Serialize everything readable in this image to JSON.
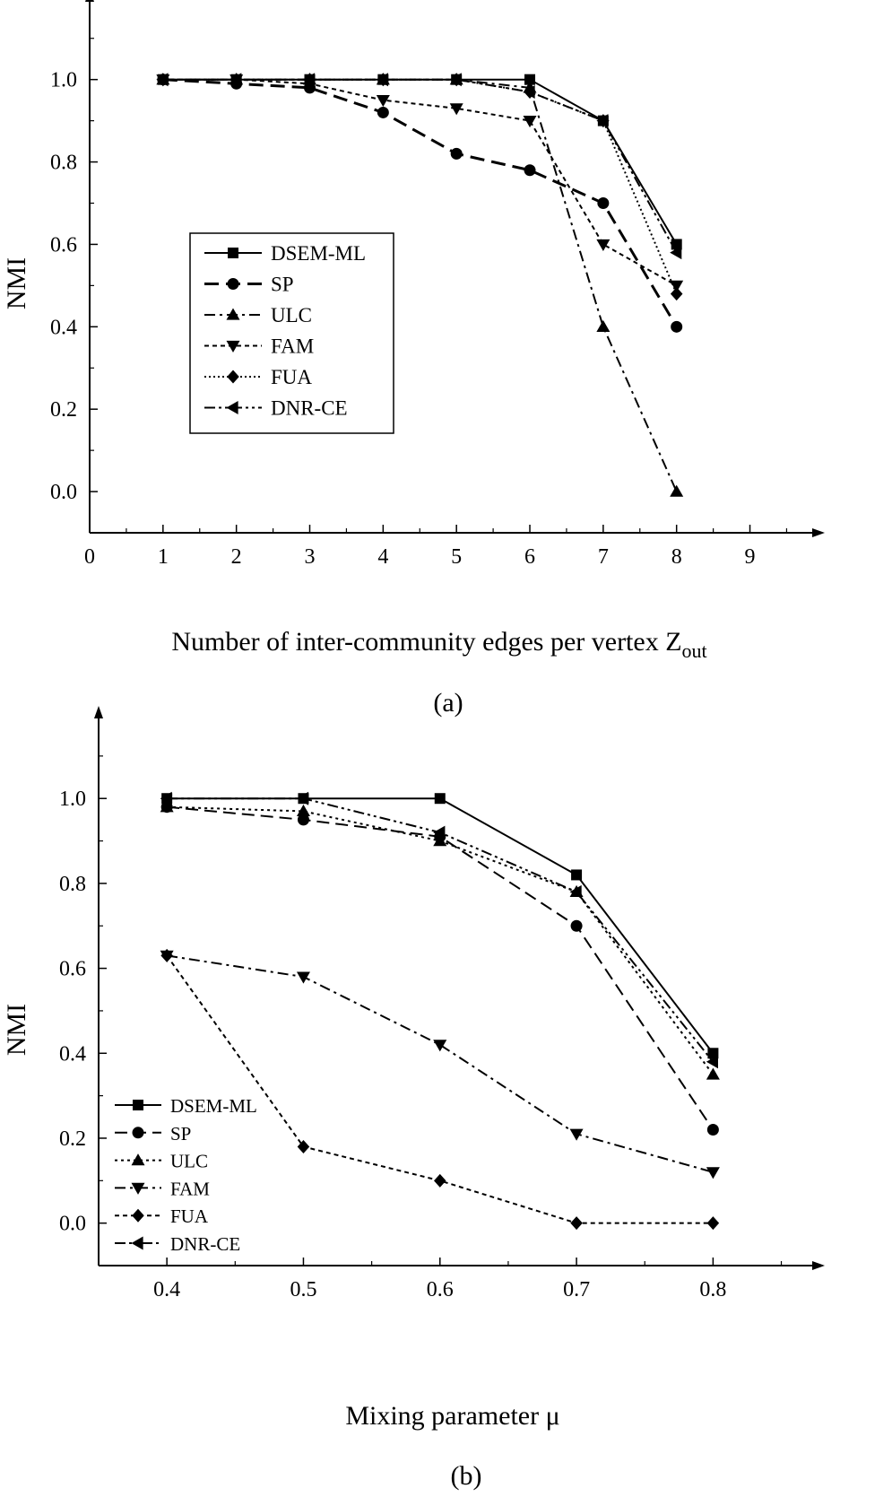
{
  "chart_data": [
    {
      "type": "line",
      "caption": "(a)",
      "xlabel": "Number of inter-community edges per vertex Z",
      "xlabel_sub": "out",
      "ylabel": "NMI",
      "xlim": [
        0,
        9.8
      ],
      "ylim": [
        -0.1,
        1.18
      ],
      "xticks": [
        0,
        1,
        2,
        3,
        4,
        5,
        6,
        7,
        8,
        9
      ],
      "yticks": [
        "0.0",
        "0.2",
        "0.4",
        "0.6",
        "0.8",
        "1.0"
      ],
      "x": [
        1,
        2,
        3,
        4,
        5,
        6,
        7,
        8
      ],
      "legend": "middle-left",
      "series": [
        {
          "name": "DSEM-ML",
          "marker": "square",
          "dash": "",
          "width": 2,
          "values": [
            1.0,
            1.0,
            1.0,
            1.0,
            1.0,
            1.0,
            0.9,
            0.6
          ]
        },
        {
          "name": "SP",
          "marker": "circle",
          "dash": "16,8",
          "width": 3,
          "values": [
            1.0,
            0.99,
            0.98,
            0.92,
            0.82,
            0.78,
            0.7,
            0.4
          ]
        },
        {
          "name": "ULC",
          "marker": "triangle-up",
          "dash": "12,5,3,5",
          "width": 2,
          "values": [
            1.0,
            1.0,
            1.0,
            1.0,
            1.0,
            0.98,
            0.4,
            0.0
          ]
        },
        {
          "name": "FAM",
          "marker": "triangle-down",
          "dash": "5,4",
          "width": 2,
          "values": [
            1.0,
            1.0,
            0.99,
            0.95,
            0.93,
            0.9,
            0.6,
            0.5
          ]
        },
        {
          "name": "FUA",
          "marker": "diamond",
          "dash": "2,3",
          "width": 2,
          "values": [
            1.0,
            1.0,
            1.0,
            1.0,
            1.0,
            0.97,
            0.9,
            0.48
          ]
        },
        {
          "name": "DNR-CE",
          "marker": "triangle-left",
          "dash": "12,4,3,4,3,4",
          "width": 2,
          "values": [
            1.0,
            1.0,
            1.0,
            1.0,
            1.0,
            0.97,
            0.9,
            0.58
          ]
        }
      ]
    },
    {
      "type": "line",
      "caption": "(b)",
      "xlabel": "Mixing parameter μ",
      "ylabel": "NMI",
      "xlim": [
        0.35,
        0.87
      ],
      "ylim": [
        -0.1,
        1.18
      ],
      "xticks": [
        "0.4",
        "0.5",
        "0.6",
        "0.7",
        "0.8"
      ],
      "yticks": [
        "0.0",
        "0.2",
        "0.4",
        "0.6",
        "0.8",
        "1.0"
      ],
      "x": [
        0.4,
        0.5,
        0.6,
        0.7,
        0.8
      ],
      "legend": "bottom-left",
      "series": [
        {
          "name": "DSEM-ML",
          "marker": "square",
          "dash": "",
          "width": 2,
          "values": [
            1.0,
            1.0,
            1.0,
            0.82,
            0.4
          ]
        },
        {
          "name": "SP",
          "marker": "circle",
          "dash": "14,7",
          "width": 2,
          "values": [
            0.98,
            0.95,
            0.91,
            0.7,
            0.22
          ]
        },
        {
          "name": "ULC",
          "marker": "triangle-up",
          "dash": "3,4",
          "width": 2,
          "values": [
            0.98,
            0.97,
            0.9,
            0.78,
            0.35
          ]
        },
        {
          "name": "FAM",
          "marker": "triangle-down",
          "dash": "12,5,3,5",
          "width": 2,
          "values": [
            0.63,
            0.58,
            0.42,
            0.21,
            0.12
          ]
        },
        {
          "name": "FUA",
          "marker": "diamond",
          "dash": "5,4",
          "width": 2,
          "values": [
            0.63,
            0.18,
            0.1,
            0.0,
            0.0
          ]
        },
        {
          "name": "DNR-CE",
          "marker": "triangle-left",
          "dash": "12,4,3,4,3,4",
          "width": 2,
          "values": [
            1.0,
            1.0,
            0.92,
            0.78,
            0.38
          ]
        }
      ]
    }
  ]
}
